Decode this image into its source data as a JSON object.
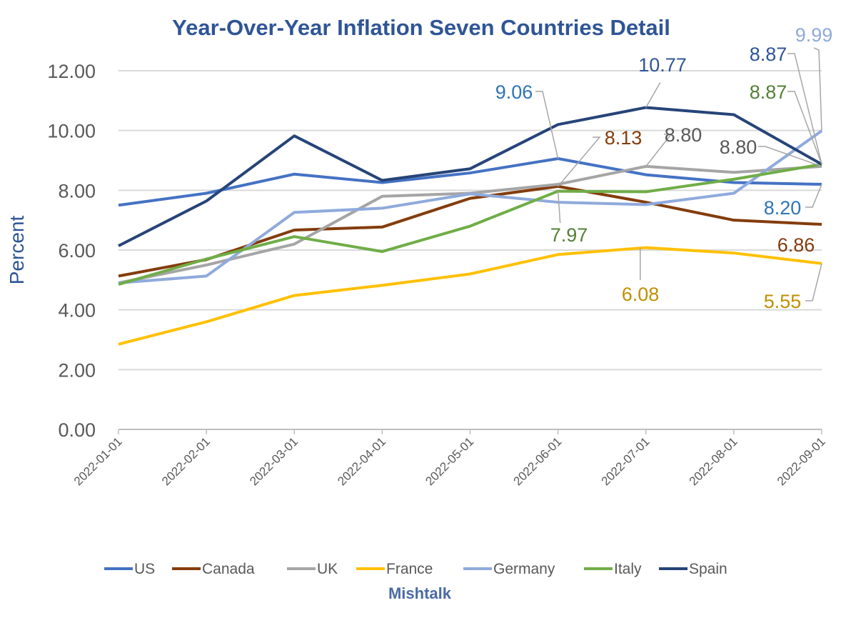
{
  "chart_data": {
    "type": "line",
    "title": "Year-Over-Year Inflation Seven Countries Detail",
    "xlabel": "",
    "ylabel": "Percent",
    "source_label": "Mishtalk",
    "ylim": [
      0,
      12
    ],
    "yticks": [
      "0.00",
      "2.00",
      "4.00",
      "6.00",
      "8.00",
      "10.00",
      "12.00"
    ],
    "grid": true,
    "legend_position": "bottom",
    "categories": [
      "2022-01-01",
      "2022-02-01",
      "2022-03-01",
      "2022-04-01",
      "2022-05-01",
      "2022-06-01",
      "2022-07-01",
      "2022-08-01",
      "2022-09-01"
    ],
    "series": [
      {
        "name": "US",
        "color": "#4472C4",
        "label_color": "#2E75B6",
        "values": [
          7.5,
          7.9,
          8.54,
          8.26,
          8.58,
          9.06,
          8.52,
          8.26,
          8.2
        ]
      },
      {
        "name": "Canada",
        "color": "#843C0C",
        "label_color": "#843C0C",
        "values": [
          5.13,
          5.68,
          6.67,
          6.77,
          7.73,
          8.13,
          7.6,
          7.0,
          6.86
        ]
      },
      {
        "name": "UK",
        "color": "#A5A5A5",
        "label_color": "#595959",
        "values": [
          4.9,
          5.5,
          6.2,
          7.8,
          7.9,
          8.2,
          8.8,
          8.6,
          8.8
        ]
      },
      {
        "name": "France",
        "color": "#FFC000",
        "label_color": "#BF9000",
        "values": [
          2.85,
          3.6,
          4.48,
          4.82,
          5.2,
          5.85,
          6.08,
          5.9,
          5.55
        ]
      },
      {
        "name": "Germany",
        "color": "#8FAADC",
        "label_color": "#8FAADC",
        "values": [
          4.9,
          5.13,
          7.26,
          7.4,
          7.88,
          7.6,
          7.52,
          7.9,
          9.99
        ]
      },
      {
        "name": "Italy",
        "color": "#70AD47",
        "label_color": "#538135",
        "values": [
          4.85,
          5.7,
          6.45,
          5.95,
          6.8,
          7.97,
          7.95,
          8.37,
          8.87
        ]
      },
      {
        "name": "Spain",
        "color": "#264478",
        "label_color": "#2F5597",
        "values": [
          6.14,
          7.64,
          9.82,
          8.33,
          8.72,
          10.2,
          10.77,
          10.53,
          8.87
        ]
      }
    ],
    "data_labels": [
      {
        "series": "US",
        "category": "2022-06-01",
        "text": "9.06"
      },
      {
        "series": "Spain",
        "category": "2022-07-01",
        "text": "10.77"
      },
      {
        "series": "Canada",
        "category": "2022-06-01",
        "text": "8.13"
      },
      {
        "series": "UK",
        "category": "2022-07-01",
        "text": "8.80"
      },
      {
        "series": "UK",
        "category": "2022-09-01",
        "text": "8.80"
      },
      {
        "series": "Spain",
        "category": "2022-09-01",
        "text": "8.87"
      },
      {
        "series": "Italy",
        "category": "2022-09-01",
        "text": "8.87"
      },
      {
        "series": "Germany",
        "category": "2022-09-01",
        "text": "9.99"
      },
      {
        "series": "US",
        "category": "2022-09-01",
        "text": "8.20"
      },
      {
        "series": "Canada",
        "category": "2022-09-01",
        "text": "6.86"
      },
      {
        "series": "France",
        "category": "2022-07-01",
        "text": "6.08"
      },
      {
        "series": "France",
        "category": "2022-09-01",
        "text": "5.55"
      },
      {
        "series": "Italy",
        "category": "2022-06-01",
        "text": "7.97"
      }
    ]
  }
}
